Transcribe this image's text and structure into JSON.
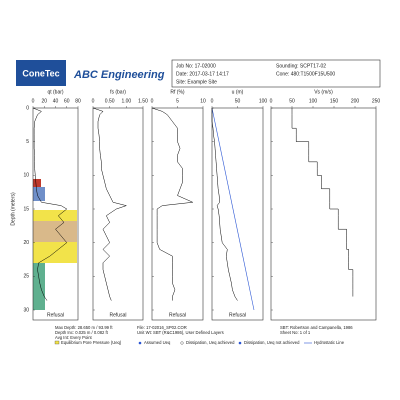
{
  "header": {
    "logo": "ConeTec",
    "company": "ABC Engineering",
    "job_no": "Job No: 17-02000",
    "date": "Date: 2017-03-17 14:17",
    "site": "Site: Example Site",
    "sounding": "Sounding: SCPT17-02",
    "cone": "Cone: 480:T1500F15U500"
  },
  "chart_data": [
    {
      "type": "line",
      "title": "qt (bar)",
      "xlabel": "Depth (meters)",
      "annotation": "Refusal",
      "color": "#000000",
      "x": [
        0,
        0.5,
        1,
        2,
        3,
        4,
        5,
        6,
        7,
        8,
        9,
        10,
        11,
        12,
        13,
        14,
        14.5,
        15,
        16,
        17,
        18,
        19,
        20,
        21,
        22,
        23,
        24,
        25,
        26,
        27,
        28,
        28.6
      ],
      "values": [
        0,
        15,
        8,
        3,
        2,
        2,
        2,
        2,
        3,
        3,
        3,
        4,
        5,
        6,
        8,
        15,
        50,
        60,
        45,
        55,
        40,
        50,
        60,
        45,
        30,
        10,
        8,
        10,
        12,
        15,
        20,
        25
      ],
      "xlim": [
        0,
        30
      ],
      "xticks": [
        0,
        5,
        10,
        15,
        20,
        25,
        30
      ],
      "ylim": [
        0,
        80
      ],
      "yticks": [
        0,
        20,
        40,
        60,
        80
      ]
    },
    {
      "type": "line",
      "title": "fs (bar)",
      "annotation": "Refusal",
      "color": "#000000",
      "x": [
        0,
        0.5,
        1,
        2,
        3,
        4,
        5,
        6,
        7,
        8,
        9,
        10,
        11,
        12,
        13,
        14,
        14.5,
        15,
        16,
        17,
        18,
        19,
        20,
        21,
        22,
        23,
        24,
        25,
        26,
        27,
        28,
        28.6
      ],
      "values": [
        0,
        0.3,
        0.2,
        0.15,
        0.15,
        0.18,
        0.2,
        0.2,
        0.22,
        0.25,
        0.25,
        0.3,
        0.35,
        0.4,
        0.5,
        0.6,
        1.0,
        0.7,
        0.4,
        0.5,
        0.3,
        0.4,
        0.5,
        0.3,
        0.5,
        0.3,
        0.3,
        0.35,
        0.4,
        0.45,
        0.5,
        0.55
      ],
      "xlim": [
        0,
        30
      ],
      "ylim": [
        0,
        1.5
      ],
      "yticks": [
        0,
        {
          "value": 0.5,
          "label": "0.50"
        },
        {
          "value": 1,
          "label": "1.00"
        },
        {
          "value": 1.5,
          "label": "1.50"
        }
      ]
    },
    {
      "type": "line",
      "title": "Rf (%)",
      "annotation": "Refusal",
      "color": "#000000",
      "x": [
        0,
        0.5,
        1,
        2,
        3,
        4,
        5,
        6,
        7,
        8,
        9,
        10,
        11,
        12,
        13,
        14,
        14.5,
        15,
        16,
        17,
        18,
        19,
        20,
        21,
        22,
        23,
        24,
        25,
        26,
        27,
        28,
        28.6
      ],
      "values": [
        0,
        2,
        3,
        4,
        5,
        5,
        5,
        5.5,
        5,
        5,
        6,
        6,
        6,
        5.5,
        5,
        8,
        2,
        1,
        1,
        1,
        1,
        1,
        1,
        1.5,
        4,
        4,
        4,
        4,
        4,
        4.5,
        4,
        4
      ],
      "xlim": [
        0,
        30
      ],
      "ylim": [
        0,
        10
      ],
      "yticks": [
        0,
        5,
        10
      ]
    },
    {
      "type": "line",
      "title": "u (m)",
      "annotation": "Refusal",
      "color": "#000000",
      "x": [
        0,
        0.5,
        1,
        2,
        3,
        4,
        5,
        6,
        7,
        8,
        9,
        10,
        11,
        12,
        13,
        14,
        14.5,
        15,
        16,
        17,
        18,
        19,
        20,
        21,
        22,
        23,
        24,
        25,
        26,
        27,
        28,
        28.6
      ],
      "values": [
        0,
        0,
        0,
        0,
        2,
        3,
        5,
        6,
        7,
        8,
        9,
        10,
        11,
        12,
        14,
        15,
        10,
        12,
        14,
        15,
        16,
        18,
        20,
        30,
        28,
        30,
        32,
        35,
        38,
        40,
        45,
        50
      ],
      "xlim": [
        0,
        30
      ],
      "ylim": [
        0,
        100
      ],
      "yticks": [
        0,
        50,
        100
      ]
    },
    {
      "type": "step",
      "title": "Vs (m/s)",
      "color": "#000000",
      "x": [
        1,
        2,
        3,
        4,
        5,
        6,
        7,
        8,
        9,
        10,
        11,
        12,
        13,
        14,
        15,
        16,
        17,
        18,
        19,
        20,
        21,
        22,
        23,
        24,
        25,
        26,
        27,
        28
      ],
      "values": [
        50,
        50,
        50,
        60,
        60,
        90,
        90,
        90,
        110,
        110,
        120,
        120,
        140,
        140,
        140,
        160,
        160,
        160,
        180,
        180,
        180,
        185,
        185,
        185,
        195,
        195,
        195,
        195
      ],
      "xlim": [
        0,
        30
      ],
      "ylim": [
        0,
        250
      ],
      "yticks": [
        0,
        50,
        100,
        150,
        200,
        250
      ]
    }
  ],
  "footer": {
    "max_depth": "Max Depth: 28.650 m / 93.99 ft",
    "depth_inc": "Depth Inc: 0.025 m / 0.082 ft",
    "avg_int": "Avg Int: Every Point",
    "file": "File: 17-02016_SP02.COR",
    "unit_wt": "Unit Wt: SBT (R&C1986), User Defined Layers",
    "sbt": "SBT: Robertson and Campanella, 1986",
    "sheet": "Sheet No: 1 of 1"
  },
  "legend": [
    "Equilibrium Pore Pressure (Ueq)",
    "Assumed Ueq",
    "Dissipation, Ueq achieved",
    "Dissipation, Ueq not achieved",
    "Hydrostatic Line"
  ]
}
